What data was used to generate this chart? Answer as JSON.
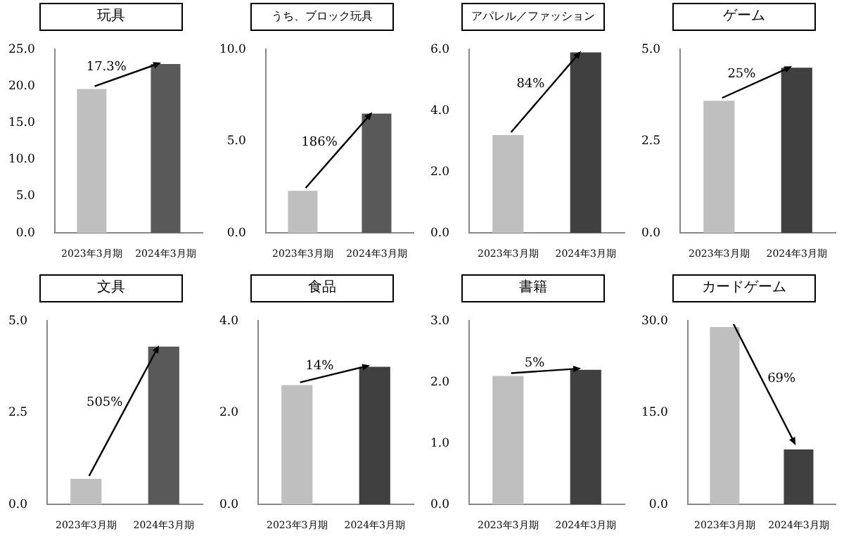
{
  "chart_data": [
    {
      "type": "bar",
      "title": "玩具",
      "categories": [
        "2023年3月期",
        "2024年3月期"
      ],
      "values": [
        19.6,
        23.0
      ],
      "colors": [
        "#bfbfbf",
        "#595959"
      ],
      "ylim": [
        0,
        25
      ],
      "yticks": [
        {
          "value": 0,
          "label": "0.0"
        },
        {
          "value": 5,
          "label": "5.0"
        },
        {
          "value": 10,
          "label": "10.0"
        },
        {
          "value": 15,
          "label": "15.0"
        },
        {
          "value": 20,
          "label": "20.0"
        },
        {
          "value": 25,
          "label": "25.0"
        }
      ],
      "annotations": [
        {
          "text": "17.3%",
          "x": "2024年3月期",
          "y": 23.0
        }
      ]
    },
    {
      "type": "bar",
      "title": "うち、ブロック玩具",
      "categories": [
        "2023年3月期",
        "2024年3月期"
      ],
      "values": [
        2.3,
        6.5
      ],
      "colors": [
        "#bfbfbf",
        "#595959"
      ],
      "ylim": [
        0,
        10
      ],
      "yticks": [
        {
          "value": 0,
          "label": "0.0"
        },
        {
          "value": 5,
          "label": "5.0"
        },
        {
          "value": 10,
          "label": "10.0"
        }
      ],
      "annotations": [
        "186%"
      ]
    },
    {
      "type": "bar",
      "title": "アパレル／ファッション",
      "categories": [
        "2023年3月期",
        "2024年3月期"
      ],
      "values": [
        3.2,
        5.9
      ],
      "colors": [
        "#bfbfbf",
        "#404040"
      ],
      "ylim": [
        0,
        6
      ],
      "yticks": [
        {
          "value": 0,
          "label": "0.0"
        },
        {
          "value": 2,
          "label": "2.0"
        },
        {
          "value": 4,
          "label": "4.0"
        },
        {
          "value": 6,
          "label": "6.0"
        }
      ],
      "annotations": [
        "84%"
      ]
    },
    {
      "type": "bar",
      "title": "ゲーム",
      "categories": [
        "2023年3月期",
        "2024年3月期"
      ],
      "values": [
        3.6,
        4.5
      ],
      "colors": [
        "#bfbfbf",
        "#404040"
      ],
      "ylim": [
        0,
        5
      ],
      "yticks": [
        {
          "value": 0,
          "label": "0.0"
        },
        2.5,
        {
          "value": 5,
          "label": "5.0"
        }
      ],
      "annotations": [
        "25%"
      ]
    },
    {
      "type": "bar",
      "title": "文具",
      "categories": [
        "2023年3月期",
        "2024年3月期"
      ],
      "values": [
        0.7,
        4.3
      ],
      "colors": [
        "#bfbfbf",
        "#595959"
      ],
      "ylim": [
        0,
        5
      ],
      "yticks": [
        {
          "value": 0,
          "label": "0.0"
        },
        2.5,
        {
          "value": 5,
          "label": "5.0"
        }
      ],
      "annotations": [
        "505%"
      ]
    },
    {
      "type": "bar",
      "title": "食品",
      "categories": [
        "2023年3月期",
        "2024年3月期"
      ],
      "values": [
        2.6,
        3.0
      ],
      "colors": [
        "#bfbfbf",
        "#404040"
      ],
      "ylim": [
        0,
        4
      ],
      "yticks": [
        {
          "value": 0,
          "label": "0.0"
        },
        {
          "value": 2,
          "label": "2.0"
        },
        {
          "value": 4,
          "label": "4.0"
        }
      ],
      "annotations": [
        {
          "text": "14%",
          "x": "2024年3月期",
          "y": 3.0
        }
      ]
    },
    {
      "type": "bar",
      "title": "書籍",
      "categories": [
        "2023年3月期",
        "2024年3月期"
      ],
      "values": [
        2.1,
        2.2
      ],
      "colors": [
        "#bfbfbf",
        "#404040"
      ],
      "ylim": [
        0,
        3
      ],
      "yticks": [
        {
          "value": 0,
          "label": "0.0"
        },
        {
          "value": 1,
          "label": "1.0"
        },
        {
          "value": 2,
          "label": "2.0"
        },
        {
          "value": 3,
          "label": "3.0"
        }
      ],
      "annotations": [
        {
          "text": "5%",
          "x": "2024年3月期",
          "y": 2.2
        }
      ]
    },
    {
      "type": "bar",
      "title": "カードゲーム",
      "categories": [
        "2023年3月期",
        "2024年3月期"
      ],
      "values": [
        29.0,
        9.0
      ],
      "colors": [
        "#bfbfbf",
        "#404040"
      ],
      "ylim": [
        0,
        30
      ],
      "yticks": [
        {
          "value": 0,
          "label": "0.0"
        },
        {
          "value": 15,
          "label": "15.0"
        },
        {
          "value": 30,
          "label": "30.0"
        }
      ],
      "annotations": [
        "69%"
      ]
    }
  ]
}
